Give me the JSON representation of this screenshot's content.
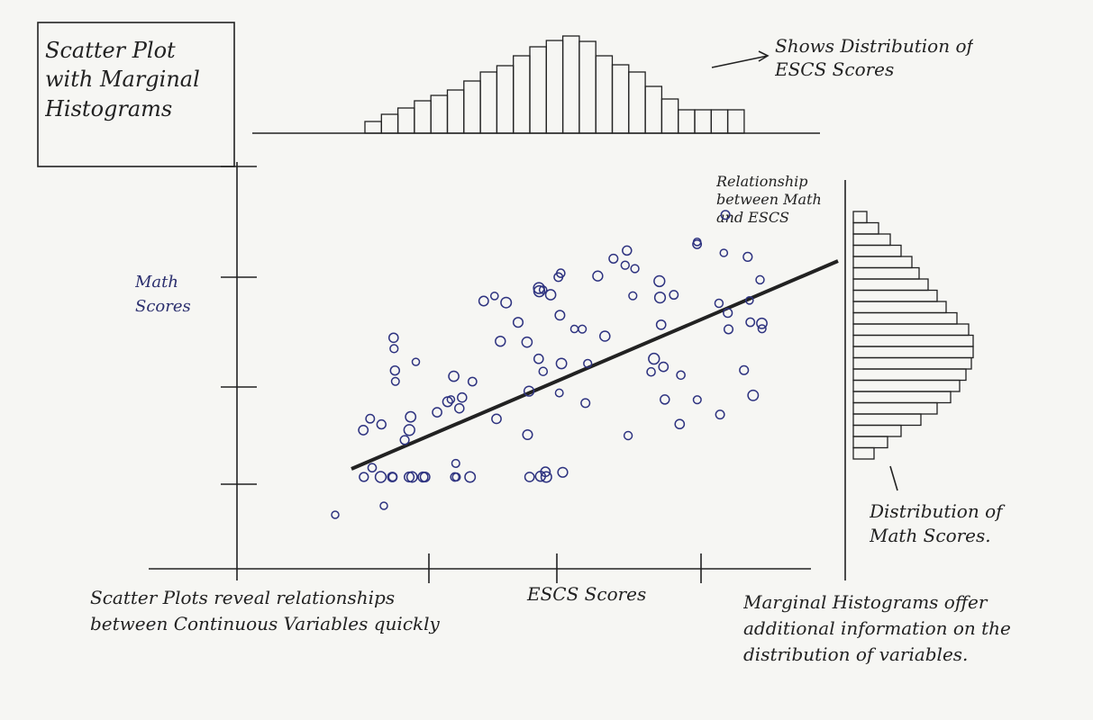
{
  "title": "Scatter Plot with Marginal Histograms",
  "annotations": {
    "top_histogram": "Shows Distribution of ESCS Scores",
    "regression_line": "Relationship between Math and ESCS",
    "right_histogram": "Distribution of Math Scores.",
    "scatter_note": "Scatter Plots reveal relationships between Continuous Variables quickly",
    "marginal_note": "Marginal Histograms offer additional information on the distribution of variables."
  },
  "axes": {
    "y_label": "Math Scores",
    "x_label": "ESCS Scores"
  }
}
